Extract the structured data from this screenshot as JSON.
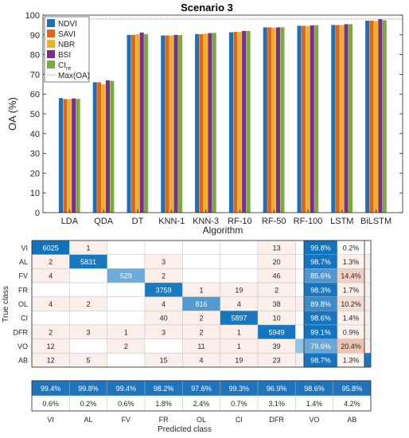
{
  "chart_data": [
    {
      "type": "bar",
      "title": "Scenario 3",
      "xlabel": "Algorithm",
      "ylabel": "OA (%)",
      "ylim": [
        0,
        100
      ],
      "yticks": [
        0,
        10,
        20,
        30,
        40,
        50,
        60,
        70,
        80,
        90,
        100
      ],
      "grid": false,
      "legend_position": "top-left",
      "categories": [
        "LDA",
        "QDA",
        "DT",
        "KNN-1",
        "KNN-3",
        "RF-10",
        "RF-50",
        "RF-100",
        "LSTM",
        "BiLSTM"
      ],
      "series": [
        {
          "name": "NDVI",
          "color": "#1f6fb5",
          "values": [
            58,
            66,
            90,
            89.7,
            90.4,
            91.3,
            93.8,
            94.6,
            95,
            97.2
          ]
        },
        {
          "name": "SAVI",
          "color": "#e0661a",
          "values": [
            57.5,
            66,
            90,
            89.7,
            90.4,
            91.5,
            93.8,
            94.6,
            95,
            97.2
          ]
        },
        {
          "name": "NBR",
          "color": "#edb12a",
          "values": [
            57.5,
            65,
            90.3,
            89.7,
            90.6,
            91.5,
            93.6,
            94.5,
            95,
            97
          ]
        },
        {
          "name": "BSI",
          "color": "#7b2f8c",
          "values": [
            57.8,
            67,
            91.2,
            90,
            90.9,
            92,
            93.8,
            94.8,
            95.4,
            98
          ]
        },
        {
          "name": "CI",
          "name_sub": "re",
          "color": "#77ab3c",
          "values": [
            57.6,
            66.7,
            90.4,
            89.9,
            91,
            92,
            93.8,
            94.9,
            95.4,
            97.4
          ]
        }
      ],
      "reference_line": {
        "name": "Max(OA)",
        "value": 98,
        "style": "dotted",
        "color": "#888888"
      }
    },
    {
      "type": "table",
      "kind": "confusion_matrix",
      "ylabel": "True class",
      "xlabel": "Predicted class",
      "classes": [
        "VI",
        "AL",
        "FV",
        "FR",
        "OL",
        "CI",
        "DFR",
        "VO",
        "AB"
      ],
      "matrix": [
        [
          "6025",
          "1",
          "",
          "",
          "",
          "",
          "13",
          "",
          ""
        ],
        [
          "2",
          "5831",
          "",
          "3",
          "",
          "",
          "20",
          "",
          "50"
        ],
        [
          "4",
          "",
          "529",
          "2",
          "",
          "",
          "46",
          "",
          "37"
        ],
        [
          "",
          "",
          "",
          "3759",
          "1",
          "19",
          "2",
          "",
          "42"
        ],
        [
          "4",
          "2",
          "",
          "4",
          "816",
          "4",
          "38",
          "4",
          "37"
        ],
        [
          "",
          "",
          "",
          "40",
          "2",
          "5897",
          "10",
          "",
          "31"
        ],
        [
          "2",
          "3",
          "1",
          "3",
          "2",
          "1",
          "5949",
          "",
          "45"
        ],
        [
          "12",
          "",
          "2",
          "",
          "11",
          "1",
          "39",
          "360",
          "27"
        ],
        [
          "12",
          "5",
          "",
          "15",
          "4",
          "19",
          "23",
          "1",
          "6110"
        ]
      ],
      "row_summary": [
        [
          "99.8%",
          "0.2%"
        ],
        [
          "98.7%",
          "1.3%"
        ],
        [
          "85.6%",
          "14.4%"
        ],
        [
          "98.3%",
          "1.7%"
        ],
        [
          "89.8%",
          "10.2%"
        ],
        [
          "98.6%",
          "1.4%"
        ],
        [
          "99.1%",
          "0.9%"
        ],
        [
          "79.6%",
          "20.4%"
        ],
        [
          "98.7%",
          "1.3%"
        ]
      ],
      "col_summary_correct": [
        "99.4%",
        "99.8%",
        "99.4%",
        "98.2%",
        "97.6%",
        "99.3%",
        "96.9%",
        "98.6%",
        "95.8%"
      ],
      "col_summary_error": [
        "0.6%",
        "0.2%",
        "0.6%",
        "1.8%",
        "2.4%",
        "0.7%",
        "3.1%",
        "1.4%",
        "4.2%"
      ]
    }
  ]
}
